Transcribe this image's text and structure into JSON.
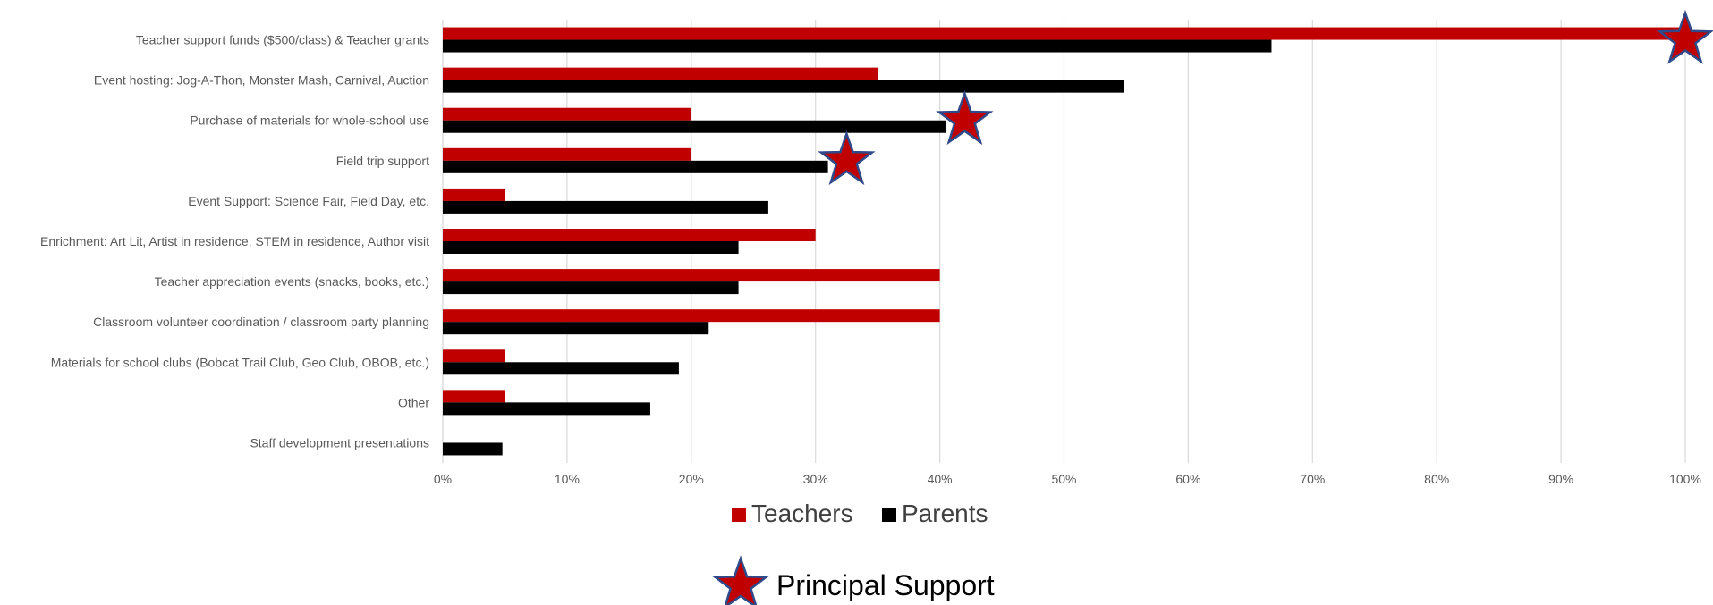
{
  "chart_data": {
    "type": "bar",
    "orientation": "horizontal",
    "categories": [
      "Teacher support funds ($500/class) & Teacher grants",
      "Event hosting: Jog-A-Thon, Monster Mash, Carnival, Auction",
      "Purchase of materials for whole-school use",
      "Field trip support",
      "Event Support: Science Fair, Field Day, etc.",
      "Enrichment: Art Lit, Artist in residence, STEM in residence, Author visit",
      "Teacher appreciation events (snacks, books, etc.)",
      "Classroom volunteer coordination / classroom party planning",
      "Materials for school clubs (Bobcat Trail Club, Geo Club, OBOB, etc.)",
      "Other",
      "Staff development presentations"
    ],
    "series": [
      {
        "name": "Teachers",
        "color": "#c00000",
        "values": [
          100,
          35,
          20,
          20,
          5,
          30,
          40,
          40,
          5,
          5,
          0
        ]
      },
      {
        "name": "Parents",
        "color": "#000000",
        "values": [
          66.7,
          54.8,
          40.5,
          31.0,
          26.2,
          23.8,
          23.8,
          21.4,
          19.0,
          16.7,
          4.8
        ]
      }
    ],
    "principal_support": [
      {
        "category": "Teacher support funds ($500/class) & Teacher grants",
        "value": 100
      },
      {
        "category": "Purchase of materials for whole-school use",
        "value": 42
      },
      {
        "category": "Field trip support",
        "value": 32.5
      }
    ],
    "xticks": [
      "0%",
      "10%",
      "20%",
      "30%",
      "40%",
      "50%",
      "60%",
      "70%",
      "80%",
      "90%",
      "100%"
    ],
    "xlim": [
      0,
      100
    ],
    "grid": true,
    "legend": {
      "position": "bottom",
      "items": [
        "Teachers",
        "Parents"
      ]
    },
    "annotation": {
      "label": "Principal Support",
      "marker": "star-icon",
      "star_fill": "#c00000",
      "star_stroke": "#2f4a8a"
    }
  }
}
